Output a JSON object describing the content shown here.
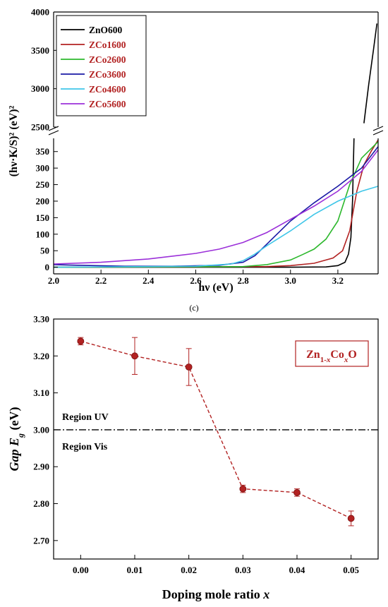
{
  "chart_data": [
    {
      "type": "line",
      "panel_label": "(c)",
      "xlabel": "hν (eV)",
      "ylabel": "(hν·K/S)² (eV)²",
      "xlim": [
        2.0,
        3.37
      ],
      "y_broken_axis": {
        "lower": [
          -20,
          390
        ],
        "upper": [
          2500,
          4000
        ]
      },
      "x_ticks": [
        "2.0",
        "2.2",
        "2.4",
        "2.6",
        "2.8",
        "3.0",
        "3.2"
      ],
      "y_ticks_lower": [
        "0",
        "50",
        "100",
        "150",
        "200",
        "250",
        "300",
        "350"
      ],
      "y_ticks_upper": [
        "2500",
        "3000",
        "3500",
        "4000"
      ],
      "legend_position": "top-left",
      "series": [
        {
          "name": "ZnO600",
          "color": "#000000",
          "x": [
            2.0,
            3.0,
            3.15,
            3.2,
            3.23,
            3.245,
            3.255,
            3.262,
            3.268
          ],
          "y": [
            0,
            0,
            1,
            5,
            15,
            40,
            90,
            200,
            390
          ]
        },
        {
          "name": "ZCo1600",
          "color": "#b22222",
          "x": [
            2.0,
            2.9,
            3.0,
            3.1,
            3.18,
            3.22,
            3.25,
            3.28,
            3.31,
            3.34,
            3.37
          ],
          "y": [
            0,
            2,
            5,
            12,
            28,
            50,
            110,
            230,
            310,
            350,
            385
          ]
        },
        {
          "name": "ZCo2600",
          "color": "#2db82d",
          "x": [
            2.0,
            2.8,
            2.9,
            3.0,
            3.05,
            3.1,
            3.15,
            3.2,
            3.25,
            3.3,
            3.37
          ],
          "y": [
            0,
            2,
            8,
            22,
            38,
            55,
            85,
            140,
            250,
            330,
            380
          ]
        },
        {
          "name": "ZCo3600",
          "color": "#1a1aa6",
          "x": [
            2.0,
            2.1,
            2.3,
            2.5,
            2.7,
            2.8,
            2.85,
            2.9,
            3.0,
            3.1,
            3.2,
            3.3,
            3.37
          ],
          "y": [
            8,
            6,
            3,
            3,
            6,
            15,
            35,
            70,
            140,
            195,
            245,
            300,
            365
          ]
        },
        {
          "name": "ZCo4600",
          "color": "#3fc6e8",
          "x": [
            2.0,
            2.6,
            2.75,
            2.8,
            2.85,
            2.9,
            3.0,
            3.1,
            3.2,
            3.3,
            3.37
          ],
          "y": [
            0,
            3,
            10,
            20,
            40,
            65,
            110,
            160,
            200,
            230,
            245
          ]
        },
        {
          "name": "ZCo5600",
          "color": "#9b30d9",
          "x": [
            2.0,
            2.2,
            2.4,
            2.6,
            2.7,
            2.8,
            2.9,
            3.0,
            3.1,
            3.2,
            3.3,
            3.37
          ],
          "y": [
            10,
            15,
            25,
            42,
            55,
            75,
            105,
            145,
            185,
            230,
            290,
            355
          ]
        }
      ]
    },
    {
      "type": "scatter",
      "title_box": "Zn1-xCoxO",
      "title_parts": {
        "base": "Zn",
        "sub1": "1-",
        "sub1_var": "x",
        "mid": "Co",
        "sub2_var": "x",
        "end": "O"
      },
      "xlabel_text": "Doping mole ratio ",
      "xlabel_var": "x",
      "ylabel_prefix": "Gap ",
      "ylabel_var": "E",
      "ylabel_sub": "g",
      "ylabel_unit": " (eV)",
      "xlim": [
        -0.005,
        0.055
      ],
      "ylim": [
        2.65,
        3.3
      ],
      "x_ticks": [
        "0.00",
        "0.01",
        "0.02",
        "0.03",
        "0.04",
        "0.05"
      ],
      "y_ticks": [
        "2.70",
        "2.80",
        "2.90",
        "3.00",
        "3.10",
        "3.20",
        "3.30"
      ],
      "threshold": {
        "value": 3.0,
        "label_above": "Region UV",
        "label_below": "Region Vis"
      },
      "color": "#b22222",
      "x": [
        0.0,
        0.01,
        0.02,
        0.03,
        0.04,
        0.05
      ],
      "y": [
        3.24,
        3.2,
        3.17,
        2.84,
        2.83,
        2.76
      ],
      "yerr": [
        0.01,
        0.05,
        0.05,
        0.01,
        0.01,
        0.02
      ]
    }
  ]
}
